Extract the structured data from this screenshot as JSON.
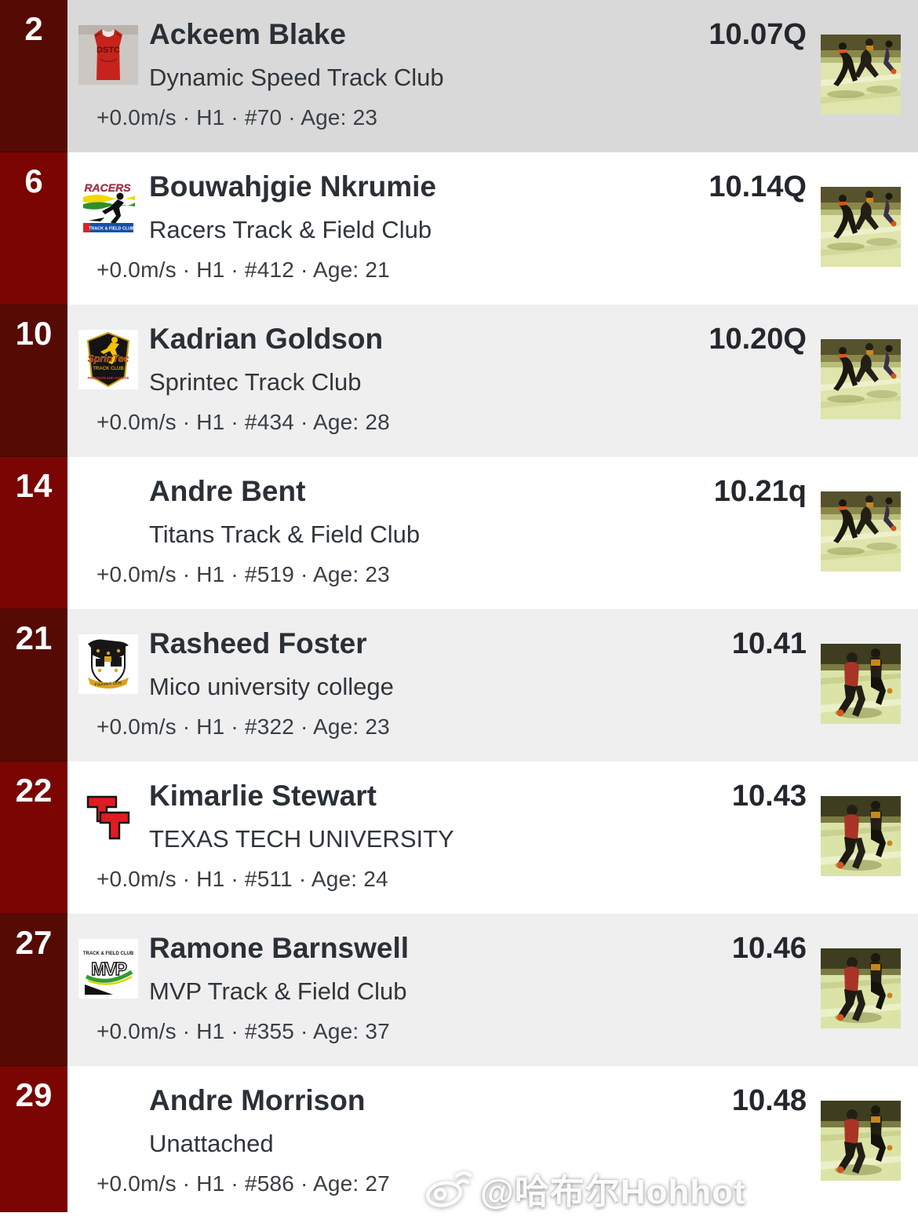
{
  "colors": {
    "rank_dark": "#550a04",
    "rank_bright": "#7a0502",
    "rank_text": "#ffffff",
    "row_white": "#ffffff",
    "row_gray": "#efefef",
    "row_pressed": "#d9d9d9",
    "name_text": "#2b3036",
    "club_text": "#31363c",
    "meta_text": "#3a3f45",
    "time_text": "#24272c"
  },
  "watermark": {
    "icon": "weibo-camera-icon",
    "text": "@哈布尔Hohhot"
  },
  "rows": [
    {
      "place": "2",
      "name": "Ackeem Blake",
      "club": "Dynamic Speed Track Club",
      "time": "10.07Q",
      "meta": "+0.0m/s · H1 · #70 · Age: 23",
      "logo": "dstc-jersey-logo",
      "logo_texts": [
        "DSTC"
      ],
      "thumb": "finish-photo-far"
    },
    {
      "place": "6",
      "name": "Bouwahjgie Nkrumie",
      "club": "Racers Track & Field Club",
      "time": "10.14Q",
      "meta": "+0.0m/s · H1 · #412 · Age: 21",
      "logo": "racers-club-logo",
      "logo_texts": [
        "RACERS",
        "TRACK & FIELD CLUB"
      ],
      "thumb": "finish-photo-far"
    },
    {
      "place": "10",
      "name": "Kadrian Goldson",
      "club": "Sprintec Track Club",
      "time": "10.20Q",
      "meta": "+0.0m/s · H1 · #434 · Age: 28",
      "logo": "sprintec-club-logo",
      "logo_texts": [
        "SprinTec",
        "TRACK CLUB",
        "PRECISION AND ACHIEVE"
      ],
      "thumb": "finish-photo-far"
    },
    {
      "place": "14",
      "name": "Andre Bent",
      "club": "Titans Track & Field Club",
      "time": "10.21q",
      "meta": "+0.0m/s · H1 · #519 · Age: 23",
      "logo": null,
      "logo_texts": [],
      "thumb": "finish-photo-far"
    },
    {
      "place": "21",
      "name": "Rasheed Foster",
      "club": "Mico university college",
      "time": "10.41",
      "meta": "+0.0m/s · H1 · #322 · Age: 23",
      "logo": "mico-college-crest",
      "logo_texts": [
        "Founded 1836"
      ],
      "thumb": "finish-photo-near"
    },
    {
      "place": "22",
      "name": "Kimarlie Stewart",
      "club": "TEXAS TECH UNIVERSITY",
      "time": "10.43",
      "meta": "+0.0m/s · H1 · #511 · Age: 24",
      "logo": "texas-tech-logo",
      "logo_texts": [],
      "thumb": "finish-photo-near"
    },
    {
      "place": "27",
      "name": "Ramone Barnswell",
      "club": "MVP Track & Field Club",
      "time": "10.46",
      "meta": "+0.0m/s · H1 · #355 · Age: 37",
      "logo": "mvp-club-logo",
      "logo_texts": [
        "TRACK & FIELD CLUB",
        "MVP"
      ],
      "thumb": "finish-photo-near"
    },
    {
      "place": "29",
      "name": "Andre Morrison",
      "club": "Unattached",
      "time": "10.48",
      "meta": "+0.0m/s · H1 · #586 · Age: 27",
      "logo": null,
      "logo_texts": [],
      "thumb": "finish-photo-near"
    }
  ]
}
